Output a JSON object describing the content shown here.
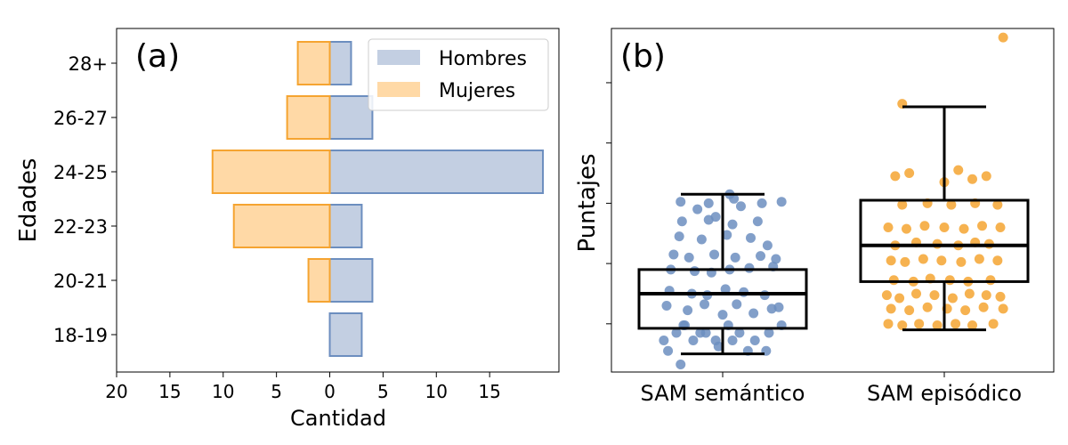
{
  "colors": {
    "hombres_fill": "#c3cfe2",
    "hombres_edge": "#6c8ebf",
    "mujeres_fill": "#ffd9a6",
    "mujeres_edge": "#f5a431",
    "sem_points": "#6c8ebf",
    "epi_points": "#f5a431"
  },
  "chart_data": [
    {
      "type": "bar",
      "orientation": "horizontal-pyramid",
      "panel_label": "(a)",
      "xlabel": "Cantidad",
      "ylabel": "Edades",
      "categories": [
        "18-19",
        "20-21",
        "22-23",
        "24-25",
        "26-27",
        "28+"
      ],
      "series": [
        {
          "name": "Hombres",
          "values": [
            3,
            4,
            3,
            20,
            4,
            2
          ]
        },
        {
          "name": "Mujeres",
          "values": [
            0,
            2,
            9,
            11,
            4,
            3
          ]
        }
      ],
      "xlim": [
        -20,
        21.5
      ],
      "xticks": [
        -20,
        -15,
        -10,
        -5,
        0,
        5,
        10,
        15
      ],
      "xtick_labels": [
        "20",
        "15",
        "10",
        "5",
        "0",
        "5",
        "10",
        "15"
      ],
      "legend": "top-right"
    },
    {
      "type": "scatter",
      "subtype": "box-with-jittered-points",
      "panel_label": "(b)",
      "ylabel": "Puntajes",
      "ylim": [
        0,
        11.4
      ],
      "yticks": [
        1.6,
        3.6,
        5.6,
        7.6,
        9.6
      ],
      "categories": [
        "SAM semántico",
        "SAM episódico"
      ],
      "boxes": [
        {
          "category": "SAM semántico",
          "whisker_low": 0.6,
          "q1": 1.45,
          "median": 2.6,
          "q3": 3.4,
          "whisker_high": 5.9
        },
        {
          "category": "SAM episódico",
          "whisker_low": 1.4,
          "q1": 3.0,
          "median": 4.2,
          "q3": 5.7,
          "whisker_high": 8.8
        }
      ],
      "points": [
        {
          "category": "SAM semántico",
          "x": [
            -0.42,
            -0.33,
            -0.28,
            -0.21,
            -0.12,
            -0.05,
            0.04,
            0.12,
            0.23,
            0.33,
            0.42,
            -0.39,
            -0.27,
            -0.16,
            -0.03,
            0.07,
            0.18,
            0.31,
            -0.4,
            -0.25,
            -0.13,
            0.0,
            0.1,
            0.22,
            0.35,
            -0.38,
            -0.22,
            -0.11,
            0.02,
            0.15,
            0.3,
            0.4,
            -0.37,
            -0.2,
            -0.08,
            0.05,
            0.19,
            0.36,
            -0.35,
            -0.24,
            -0.06,
            0.09,
            0.27,
            0.38,
            -0.31,
            -0.15,
            0.03,
            0.2,
            0.32,
            -0.29,
            -0.1,
            0.07,
            0.25,
            -0.18,
            0.13,
            -0.05,
            0.08,
            -0.3,
            -0.1,
            0.28,
            0.42,
            0.05,
            -0.3
          ],
          "y": [
            1.05,
            1.3,
            1.55,
            1.05,
            1.3,
            1.05,
            1.55,
            1.3,
            1.05,
            1.3,
            1.55,
            0.7,
            1.55,
            1.3,
            0.85,
            1.05,
            0.7,
            0.7,
            2.2,
            2.05,
            2.25,
            1.9,
            2.25,
            1.95,
            2.1,
            2.7,
            2.6,
            2.55,
            2.75,
            2.65,
            2.55,
            2.15,
            3.4,
            3.35,
            3.3,
            3.4,
            3.45,
            3.5,
            3.9,
            3.8,
            3.9,
            3.8,
            3.85,
            3.75,
            4.5,
            4.4,
            4.55,
            4.45,
            4.2,
            5.0,
            5.05,
            4.9,
            5.0,
            5.4,
            5.5,
            5.15,
            5.75,
            5.65,
            5.6,
            5.6,
            5.65,
            5.9,
            0.25
          ]
        },
        {
          "category": "SAM episódico",
          "x": [
            -0.4,
            -0.3,
            -0.18,
            -0.05,
            0.08,
            0.2,
            0.35,
            -0.38,
            -0.25,
            -0.12,
            0.02,
            0.15,
            0.28,
            0.42,
            -0.41,
            -0.32,
            -0.2,
            -0.07,
            0.06,
            0.18,
            0.3,
            0.4,
            -0.36,
            -0.22,
            -0.1,
            0.04,
            0.17,
            0.33,
            -0.38,
            -0.28,
            -0.15,
            -0.02,
            0.12,
            0.25,
            0.38,
            -0.35,
            -0.2,
            -0.05,
            0.1,
            0.22,
            0.32,
            -0.4,
            -0.27,
            -0.14,
            0.0,
            0.14,
            0.27,
            0.4,
            -0.3,
            -0.12,
            0.05,
            0.22,
            0.38,
            -0.25,
            0.1,
            -0.35,
            0.0,
            0.2,
            0.3,
            -0.3,
            0.42
          ],
          "y": [
            1.6,
            1.55,
            1.6,
            1.55,
            1.6,
            1.55,
            1.6,
            2.1,
            2.05,
            2.15,
            2.1,
            2.05,
            2.15,
            2.1,
            2.55,
            2.45,
            2.6,
            2.55,
            2.45,
            2.6,
            2.55,
            2.5,
            3.05,
            3.0,
            3.1,
            3.05,
            3.0,
            3.05,
            3.7,
            3.65,
            3.75,
            3.7,
            3.65,
            3.75,
            3.7,
            4.2,
            4.3,
            4.25,
            4.2,
            4.3,
            4.25,
            4.8,
            4.75,
            4.85,
            4.8,
            4.75,
            4.85,
            4.8,
            5.55,
            5.6,
            5.55,
            5.6,
            5.55,
            6.6,
            6.7,
            6.5,
            6.3,
            6.4,
            6.5,
            8.9,
            11.1
          ]
        }
      ]
    }
  ]
}
